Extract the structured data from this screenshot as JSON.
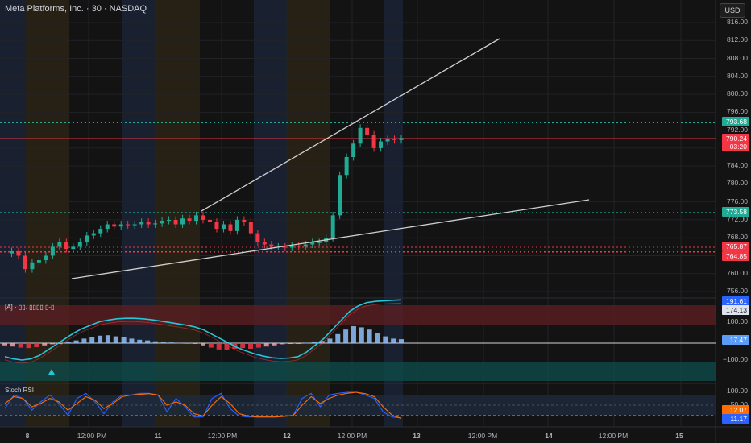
{
  "header": {
    "symbol_title": "Meta Platforms, Inc. · 30 · NASDAQ",
    "currency_button": "USD"
  },
  "price_axis": {
    "ticks": [
      "816.00",
      "812.00",
      "808.00",
      "804.00",
      "800.00",
      "796.00",
      "792.00",
      "788.00",
      "784.00",
      "780.00",
      "776.00",
      "772.00",
      "768.00",
      "764.00",
      "760.00",
      "756.00"
    ],
    "labels": [
      {
        "text": "793.68",
        "color": "#22ab94"
      },
      {
        "text": "790.24",
        "color": "#f23645"
      },
      {
        "text": "03:20",
        "color": "#f23645"
      },
      {
        "text": "773.58",
        "color": "#22ab94"
      },
      {
        "text": "765.87",
        "color": "#f23645"
      },
      {
        "text": "764.85",
        "color": "#f23645"
      }
    ]
  },
  "time_axis": {
    "ticks": [
      "8",
      "12:00 PM",
      "11",
      "12:00 PM",
      "12",
      "12:00 PM",
      "13",
      "12:00 PM",
      "14",
      "12:00 PM",
      "15"
    ]
  },
  "indicator_macd": {
    "label": "[A] · ▯▯. ▯▯▯▯ ▯-▯",
    "ticks": [
      "100.00",
      "−100.00"
    ],
    "labels": [
      {
        "text": "191.61",
        "color": "#2962ff"
      },
      {
        "text": "174.13",
        "color": "#e0e3eb"
      },
      {
        "text": "17.47",
        "color": "#5b9cf6"
      }
    ]
  },
  "indicator_stoch": {
    "label": "Stoch RSI",
    "ticks": [
      "100.00",
      "50.00",
      "0.00"
    ],
    "labels": [
      {
        "text": "12.07",
        "color": "#ff6d00"
      },
      {
        "text": "11.17",
        "color": "#2962ff"
      }
    ]
  },
  "colors": {
    "background": "#131313",
    "up": "#22ab94",
    "down": "#f23645",
    "trendline": "#cfcfcf",
    "grid": "#222326"
  },
  "chart_data": {
    "type": "candlestick",
    "symbol": "META",
    "interval": "30",
    "exchange": "NASDAQ",
    "ylim": [
      754,
      818
    ],
    "horizontal_levels": [
      793.68,
      773.58,
      765.87,
      764.85
    ],
    "current_price": 790.24,
    "countdown": "03:20",
    "sessions": [
      "8",
      "11",
      "12",
      "13"
    ],
    "price_path": [
      764.5,
      765.0,
      764.0,
      761.0,
      762.5,
      763.0,
      764.0,
      766.0,
      767.0,
      765.5,
      766.0,
      767.0,
      768.5,
      769.0,
      770.0,
      771.0,
      770.5,
      771.0,
      770.8,
      771.0,
      771.5,
      771.0,
      771.2,
      771.8,
      772.0,
      771.0,
      772.3,
      771.8,
      773.0,
      772.0,
      771.5,
      770.0,
      771.0,
      769.5,
      772.0,
      771.5,
      769.0,
      767.0,
      766.5,
      766.0,
      766.0,
      765.8,
      766.2,
      766.0,
      766.5,
      767.0,
      767.0,
      768.0,
      773.0,
      782.0,
      786.0,
      789.0,
      792.5,
      791.0,
      788.0,
      789.5,
      790.0,
      789.8,
      790.24
    ],
    "macd_histogram": [
      -10,
      -15,
      -20,
      -22,
      -18,
      -10,
      -5,
      0,
      5,
      12,
      20,
      28,
      33,
      35,
      30,
      25,
      20,
      15,
      12,
      8,
      5,
      3,
      2,
      1,
      0,
      -10,
      -20,
      -28,
      -30,
      -25,
      -22,
      -25,
      -20,
      -15,
      -10,
      -5,
      -2,
      0,
      2,
      5,
      10,
      20,
      40,
      60,
      75,
      70,
      60,
      45,
      30,
      20,
      17.47
    ],
    "macd_line": [
      -60,
      -70,
      -75,
      -70,
      -55,
      -30,
      -5,
      20,
      45,
      65,
      80,
      95,
      102,
      108,
      110,
      110,
      108,
      104,
      98,
      92,
      86,
      80,
      72,
      60,
      40,
      20,
      0,
      -20,
      -35,
      -48,
      -58,
      -65,
      -68,
      -66,
      -60,
      -40,
      -10,
      20,
      60,
      100,
      140,
      165,
      180,
      185,
      188,
      190,
      191.61
    ],
    "stoch_k": [
      40,
      80,
      70,
      35,
      60,
      80,
      55,
      20,
      70,
      85,
      60,
      25,
      60,
      80,
      80,
      85,
      85,
      80,
      30,
      70,
      45,
      15,
      15,
      70,
      85,
      40,
      18,
      15,
      15,
      15,
      15,
      18,
      20,
      70,
      85,
      45,
      80,
      85,
      88,
      88,
      80,
      70,
      30,
      15,
      12.07
    ],
    "stoch_d": [
      55,
      75,
      70,
      45,
      55,
      70,
      60,
      35,
      55,
      75,
      65,
      40,
      55,
      75,
      80,
      82,
      84,
      80,
      50,
      60,
      50,
      25,
      18,
      50,
      75,
      55,
      25,
      18,
      15,
      15,
      15,
      17,
      19,
      50,
      75,
      55,
      70,
      80,
      85,
      88,
      84,
      75,
      45,
      20,
      11.17
    ]
  }
}
